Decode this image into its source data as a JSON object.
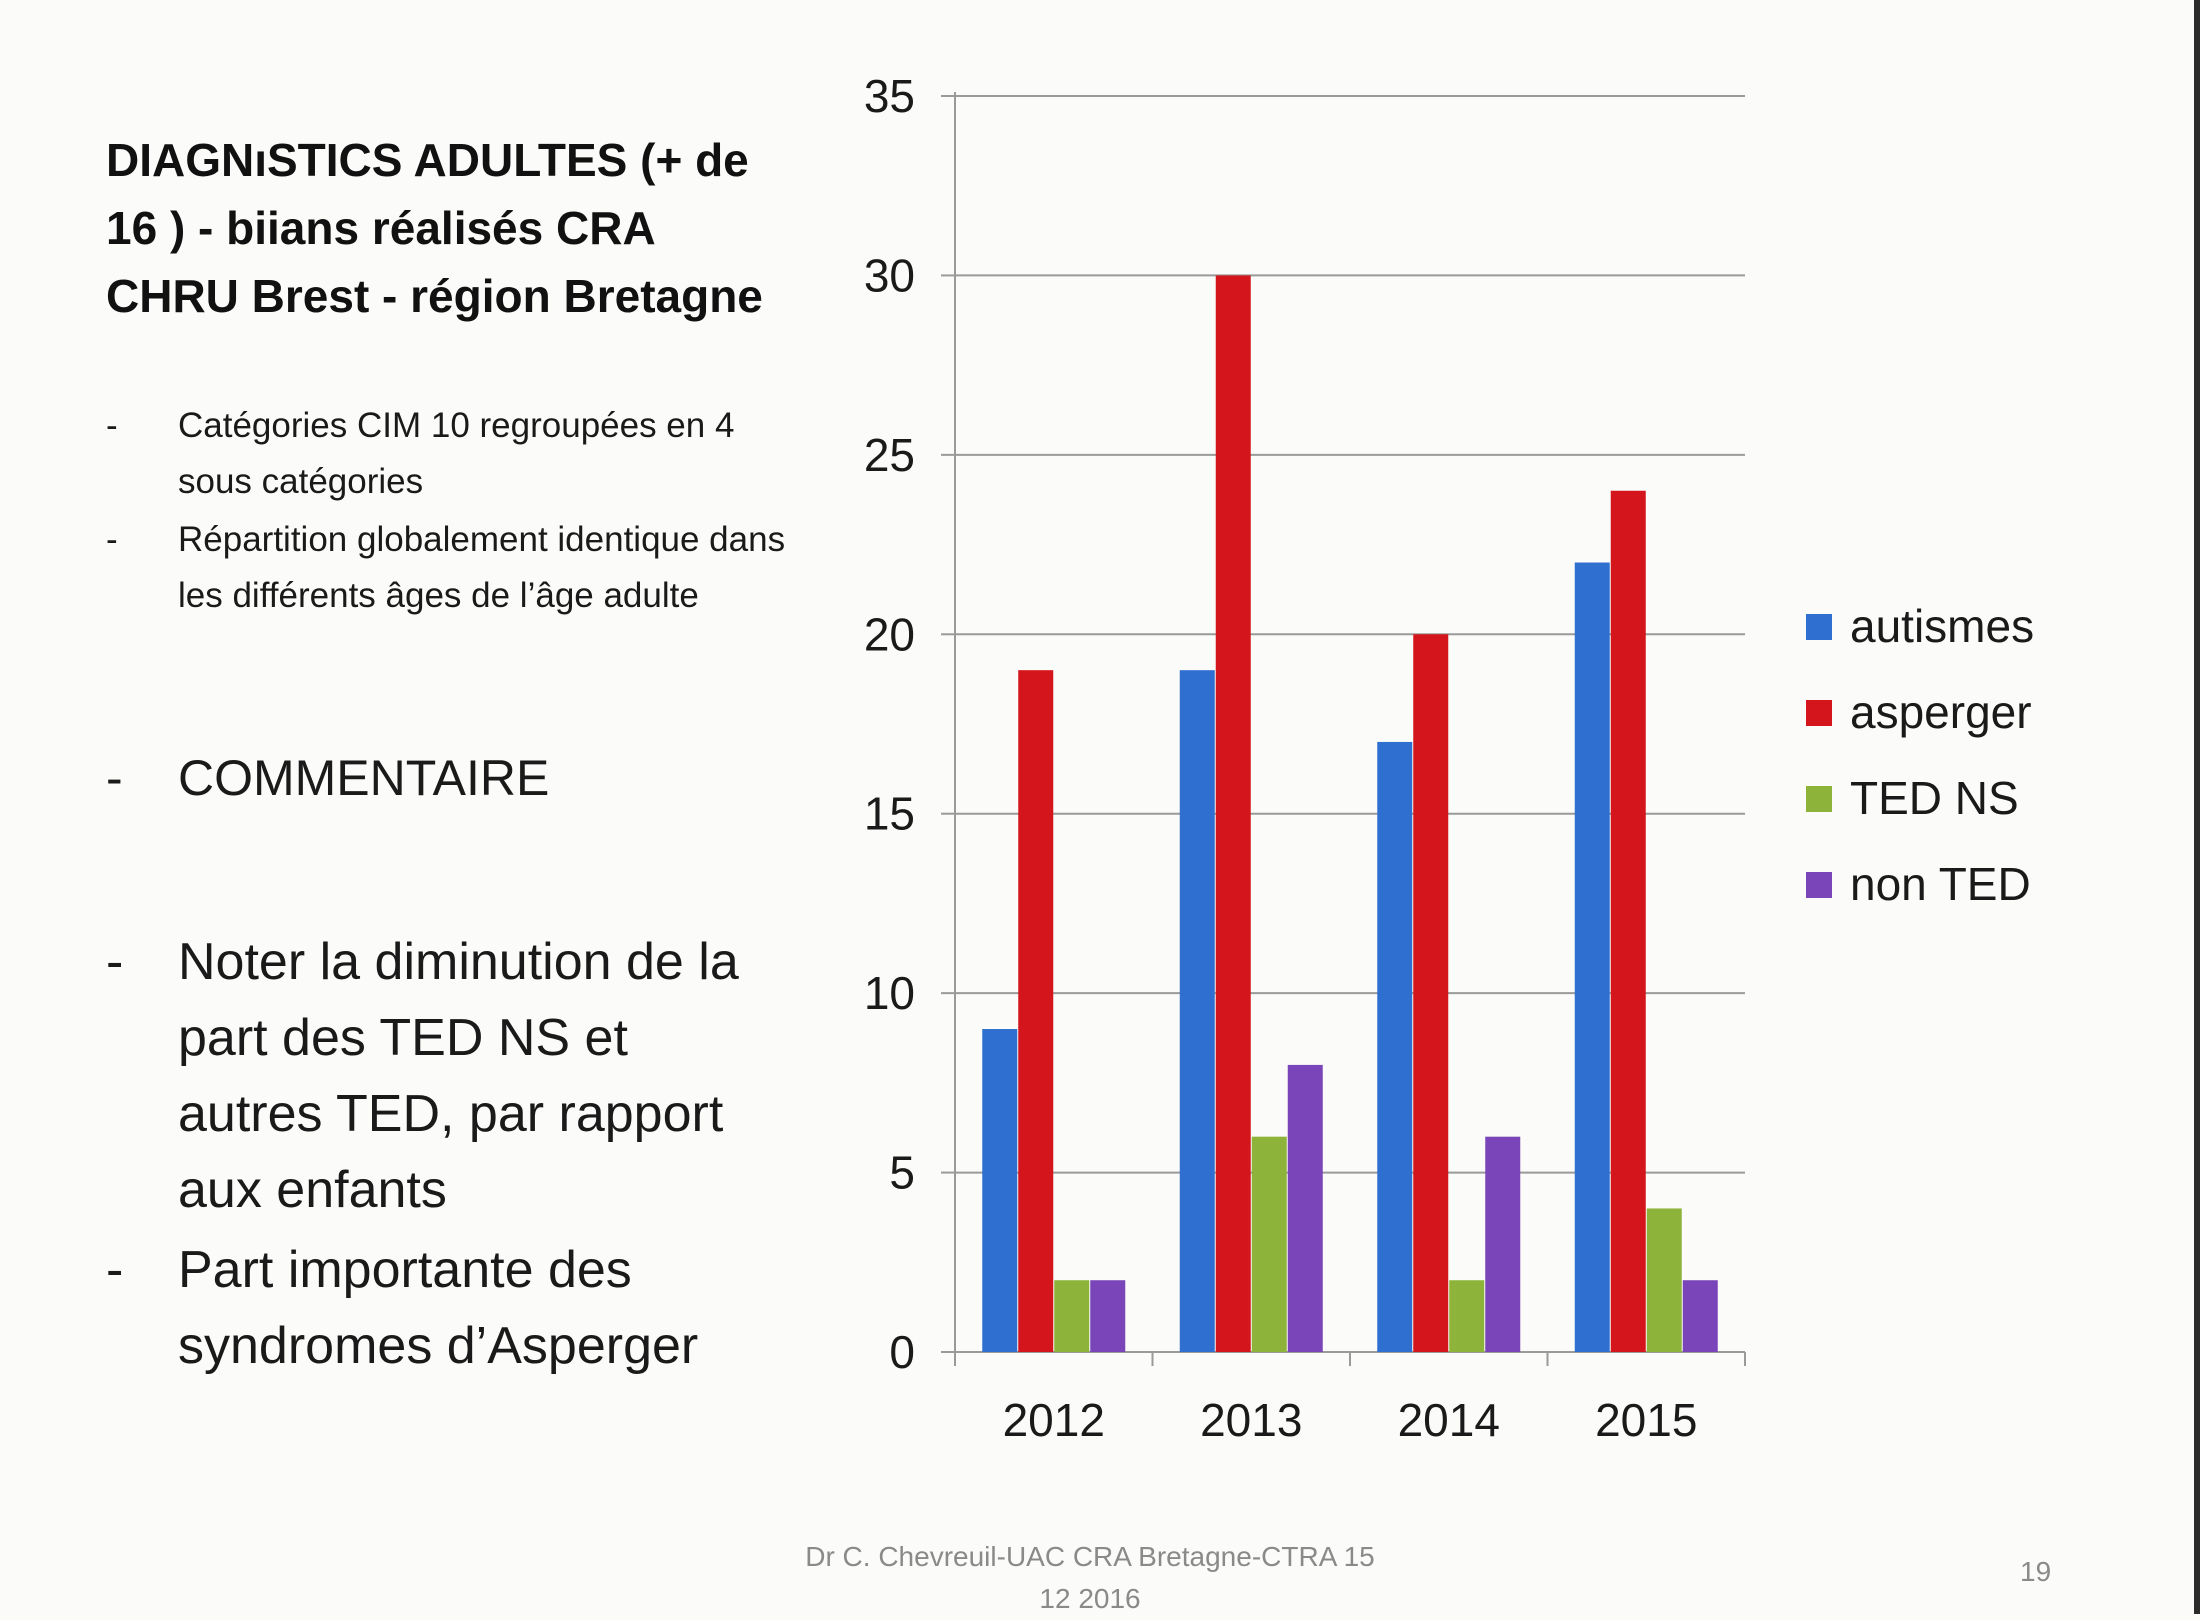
{
  "slide": {
    "title_lines": [
      "DIAGNıSTICS ADULTES (+ de",
      "16 ) - biians réalisés CRA",
      "CHRU Brest  - région Bretagne"
    ],
    "bullets_small": [
      "Catégories CIM 10 regroupées en 4 sous catégories",
      "Répartition globalement identique dans les différents âges de l’âge adulte"
    ],
    "comment_heading": "COMMENTAIRE",
    "bullets_large": [
      "Noter la diminution de la part des TED NS et autres TED, par rapport aux enfants",
      "Part importante des syndromes d’Asperger"
    ],
    "dash": "-",
    "footer_line1": "Dr C. Chevreuil-UAC CRA Bretagne-CTRA 15",
    "footer_line2": "12 2016",
    "page_number": "19"
  },
  "chart_data": {
    "type": "bar",
    "title": "",
    "xlabel": "",
    "ylabel": "",
    "categories": [
      "2012",
      "2013",
      "2014",
      "2015"
    ],
    "series": [
      {
        "name": "autismes",
        "color": "#2f6fd0",
        "values": [
          9,
          19,
          17,
          22
        ]
      },
      {
        "name": "asperger",
        "color": "#d4151b",
        "values": [
          19,
          30,
          20,
          24
        ]
      },
      {
        "name": "TED NS",
        "color": "#8db33a",
        "values": [
          2,
          6,
          2,
          4
        ]
      },
      {
        "name": "non TED",
        "color": "#7a45b8",
        "values": [
          2,
          8,
          6,
          2
        ]
      }
    ],
    "ylim": [
      0,
      35
    ],
    "yticks": [
      0,
      5,
      10,
      15,
      20,
      25,
      30,
      35
    ],
    "grid": true,
    "legend_position": "right"
  }
}
